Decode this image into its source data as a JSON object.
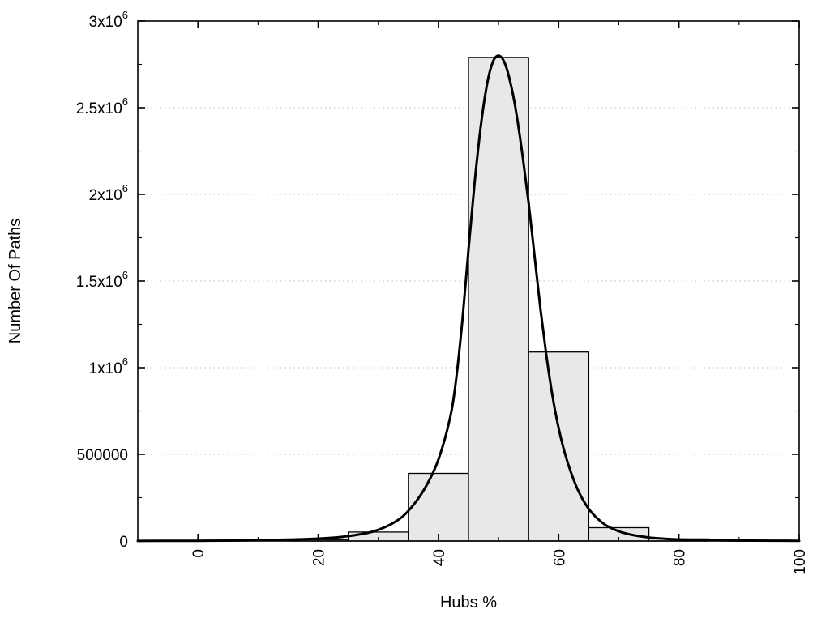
{
  "chart_data": {
    "type": "histogram+line",
    "title": "",
    "xlabel": "Hubs %",
    "ylabel": "Number Of Paths",
    "xlim": [
      -10,
      100
    ],
    "ylim": [
      0,
      3000000
    ],
    "grid": "horizontal-dotted",
    "legend": "none",
    "x_major_ticks": [
      0,
      20,
      40,
      60,
      80,
      100
    ],
    "x_minor_ticks": [
      10,
      30,
      50,
      70,
      90
    ],
    "x_tick_label_rotation": -90,
    "y_ticks": [
      {
        "value": 0,
        "label": "0"
      },
      {
        "value": 500000,
        "label": "500000"
      },
      {
        "value": 1000000,
        "label": "1x10",
        "sup": "6"
      },
      {
        "value": 1500000,
        "label": "1.5x10",
        "sup": "6"
      },
      {
        "value": 2000000,
        "label": "2x10",
        "sup": "6"
      },
      {
        "value": 2500000,
        "label": "2.5x10",
        "sup": "6"
      },
      {
        "value": 3000000,
        "label": "3x10",
        "sup": "6"
      }
    ],
    "y_minor_ticks": [
      250000,
      750000,
      1250000,
      1750000,
      2250000,
      2750000
    ],
    "histogram": {
      "fill": "#e8e8e8",
      "stroke": "#000000",
      "bin_width": 10,
      "bins": [
        {
          "x0": 15,
          "x1": 25,
          "count": 8000
        },
        {
          "x0": 25,
          "x1": 35,
          "count": 52000
        },
        {
          "x0": 35,
          "x1": 45,
          "count": 390000
        },
        {
          "x0": 45,
          "x1": 55,
          "count": 2790000
        },
        {
          "x0": 55,
          "x1": 65,
          "count": 1090000
        },
        {
          "x0": 65,
          "x1": 75,
          "count": 77000
        },
        {
          "x0": 75,
          "x1": 85,
          "count": 12000
        }
      ]
    },
    "curve": {
      "color": "#000000",
      "stroke_width": 3,
      "points": [
        [
          -10,
          700
        ],
        [
          -5,
          1000
        ],
        [
          0,
          1500
        ],
        [
          5,
          2500
        ],
        [
          10,
          4500
        ],
        [
          15,
          8000
        ],
        [
          20,
          14000
        ],
        [
          24,
          24000
        ],
        [
          28,
          45000
        ],
        [
          30,
          65000
        ],
        [
          32,
          95000
        ],
        [
          34,
          140000
        ],
        [
          36,
          215000
        ],
        [
          38,
          320000
        ],
        [
          40,
          470000
        ],
        [
          42,
          720000
        ],
        [
          43,
          950000
        ],
        [
          44,
          1280000
        ],
        [
          45,
          1680000
        ],
        [
          46,
          2060000
        ],
        [
          47,
          2380000
        ],
        [
          48,
          2620000
        ],
        [
          49,
          2760000
        ],
        [
          50,
          2800000
        ],
        [
          51,
          2760000
        ],
        [
          52,
          2640000
        ],
        [
          53,
          2460000
        ],
        [
          54,
          2220000
        ],
        [
          55,
          1950000
        ],
        [
          56,
          1640000
        ],
        [
          57,
          1330000
        ],
        [
          58,
          1060000
        ],
        [
          59,
          830000
        ],
        [
          60,
          650000
        ],
        [
          61,
          510000
        ],
        [
          62,
          400000
        ],
        [
          63,
          310000
        ],
        [
          64,
          240000
        ],
        [
          65,
          185000
        ],
        [
          66,
          145000
        ],
        [
          67,
          113000
        ],
        [
          68,
          88000
        ],
        [
          70,
          56000
        ],
        [
          72,
          37000
        ],
        [
          74,
          25000
        ],
        [
          76,
          17000
        ],
        [
          78,
          12000
        ],
        [
          80,
          9000
        ],
        [
          84,
          5500
        ],
        [
          88,
          3500
        ],
        [
          92,
          2400
        ],
        [
          96,
          1700
        ],
        [
          100,
          1200
        ]
      ]
    },
    "colors": {
      "axis": "#000000",
      "grid": "#bdbdbd",
      "background": "#ffffff",
      "bar_fill": "#e8e8e8"
    }
  }
}
